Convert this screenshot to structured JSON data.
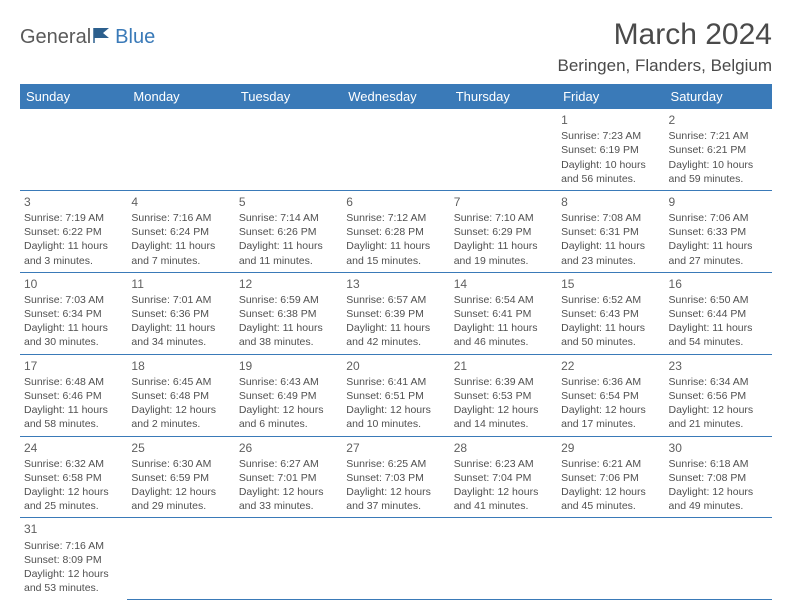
{
  "logo": {
    "text1": "General",
    "text2": "Blue"
  },
  "title": "March 2024",
  "location": "Beringen, Flanders, Belgium",
  "colors": {
    "header_bg": "#3a7ab8",
    "header_fg": "#ffffff",
    "cell_border": "#3a7ab8",
    "text": "#505050",
    "title_color": "#4a4a4a"
  },
  "weekdays": [
    "Sunday",
    "Monday",
    "Tuesday",
    "Wednesday",
    "Thursday",
    "Friday",
    "Saturday"
  ],
  "weeks": [
    [
      null,
      null,
      null,
      null,
      null,
      {
        "n": "1",
        "sr": "Sunrise: 7:23 AM",
        "ss": "Sunset: 6:19 PM",
        "dl": "Daylight: 10 hours and 56 minutes."
      },
      {
        "n": "2",
        "sr": "Sunrise: 7:21 AM",
        "ss": "Sunset: 6:21 PM",
        "dl": "Daylight: 10 hours and 59 minutes."
      }
    ],
    [
      {
        "n": "3",
        "sr": "Sunrise: 7:19 AM",
        "ss": "Sunset: 6:22 PM",
        "dl": "Daylight: 11 hours and 3 minutes."
      },
      {
        "n": "4",
        "sr": "Sunrise: 7:16 AM",
        "ss": "Sunset: 6:24 PM",
        "dl": "Daylight: 11 hours and 7 minutes."
      },
      {
        "n": "5",
        "sr": "Sunrise: 7:14 AM",
        "ss": "Sunset: 6:26 PM",
        "dl": "Daylight: 11 hours and 11 minutes."
      },
      {
        "n": "6",
        "sr": "Sunrise: 7:12 AM",
        "ss": "Sunset: 6:28 PM",
        "dl": "Daylight: 11 hours and 15 minutes."
      },
      {
        "n": "7",
        "sr": "Sunrise: 7:10 AM",
        "ss": "Sunset: 6:29 PM",
        "dl": "Daylight: 11 hours and 19 minutes."
      },
      {
        "n": "8",
        "sr": "Sunrise: 7:08 AM",
        "ss": "Sunset: 6:31 PM",
        "dl": "Daylight: 11 hours and 23 minutes."
      },
      {
        "n": "9",
        "sr": "Sunrise: 7:06 AM",
        "ss": "Sunset: 6:33 PM",
        "dl": "Daylight: 11 hours and 27 minutes."
      }
    ],
    [
      {
        "n": "10",
        "sr": "Sunrise: 7:03 AM",
        "ss": "Sunset: 6:34 PM",
        "dl": "Daylight: 11 hours and 30 minutes."
      },
      {
        "n": "11",
        "sr": "Sunrise: 7:01 AM",
        "ss": "Sunset: 6:36 PM",
        "dl": "Daylight: 11 hours and 34 minutes."
      },
      {
        "n": "12",
        "sr": "Sunrise: 6:59 AM",
        "ss": "Sunset: 6:38 PM",
        "dl": "Daylight: 11 hours and 38 minutes."
      },
      {
        "n": "13",
        "sr": "Sunrise: 6:57 AM",
        "ss": "Sunset: 6:39 PM",
        "dl": "Daylight: 11 hours and 42 minutes."
      },
      {
        "n": "14",
        "sr": "Sunrise: 6:54 AM",
        "ss": "Sunset: 6:41 PM",
        "dl": "Daylight: 11 hours and 46 minutes."
      },
      {
        "n": "15",
        "sr": "Sunrise: 6:52 AM",
        "ss": "Sunset: 6:43 PM",
        "dl": "Daylight: 11 hours and 50 minutes."
      },
      {
        "n": "16",
        "sr": "Sunrise: 6:50 AM",
        "ss": "Sunset: 6:44 PM",
        "dl": "Daylight: 11 hours and 54 minutes."
      }
    ],
    [
      {
        "n": "17",
        "sr": "Sunrise: 6:48 AM",
        "ss": "Sunset: 6:46 PM",
        "dl": "Daylight: 11 hours and 58 minutes."
      },
      {
        "n": "18",
        "sr": "Sunrise: 6:45 AM",
        "ss": "Sunset: 6:48 PM",
        "dl": "Daylight: 12 hours and 2 minutes."
      },
      {
        "n": "19",
        "sr": "Sunrise: 6:43 AM",
        "ss": "Sunset: 6:49 PM",
        "dl": "Daylight: 12 hours and 6 minutes."
      },
      {
        "n": "20",
        "sr": "Sunrise: 6:41 AM",
        "ss": "Sunset: 6:51 PM",
        "dl": "Daylight: 12 hours and 10 minutes."
      },
      {
        "n": "21",
        "sr": "Sunrise: 6:39 AM",
        "ss": "Sunset: 6:53 PM",
        "dl": "Daylight: 12 hours and 14 minutes."
      },
      {
        "n": "22",
        "sr": "Sunrise: 6:36 AM",
        "ss": "Sunset: 6:54 PM",
        "dl": "Daylight: 12 hours and 17 minutes."
      },
      {
        "n": "23",
        "sr": "Sunrise: 6:34 AM",
        "ss": "Sunset: 6:56 PM",
        "dl": "Daylight: 12 hours and 21 minutes."
      }
    ],
    [
      {
        "n": "24",
        "sr": "Sunrise: 6:32 AM",
        "ss": "Sunset: 6:58 PM",
        "dl": "Daylight: 12 hours and 25 minutes."
      },
      {
        "n": "25",
        "sr": "Sunrise: 6:30 AM",
        "ss": "Sunset: 6:59 PM",
        "dl": "Daylight: 12 hours and 29 minutes."
      },
      {
        "n": "26",
        "sr": "Sunrise: 6:27 AM",
        "ss": "Sunset: 7:01 PM",
        "dl": "Daylight: 12 hours and 33 minutes."
      },
      {
        "n": "27",
        "sr": "Sunrise: 6:25 AM",
        "ss": "Sunset: 7:03 PM",
        "dl": "Daylight: 12 hours and 37 minutes."
      },
      {
        "n": "28",
        "sr": "Sunrise: 6:23 AM",
        "ss": "Sunset: 7:04 PM",
        "dl": "Daylight: 12 hours and 41 minutes."
      },
      {
        "n": "29",
        "sr": "Sunrise: 6:21 AM",
        "ss": "Sunset: 7:06 PM",
        "dl": "Daylight: 12 hours and 45 minutes."
      },
      {
        "n": "30",
        "sr": "Sunrise: 6:18 AM",
        "ss": "Sunset: 7:08 PM",
        "dl": "Daylight: 12 hours and 49 minutes."
      }
    ],
    [
      {
        "n": "31",
        "sr": "Sunrise: 7:16 AM",
        "ss": "Sunset: 8:09 PM",
        "dl": "Daylight: 12 hours and 53 minutes."
      },
      null,
      null,
      null,
      null,
      null,
      null
    ]
  ]
}
